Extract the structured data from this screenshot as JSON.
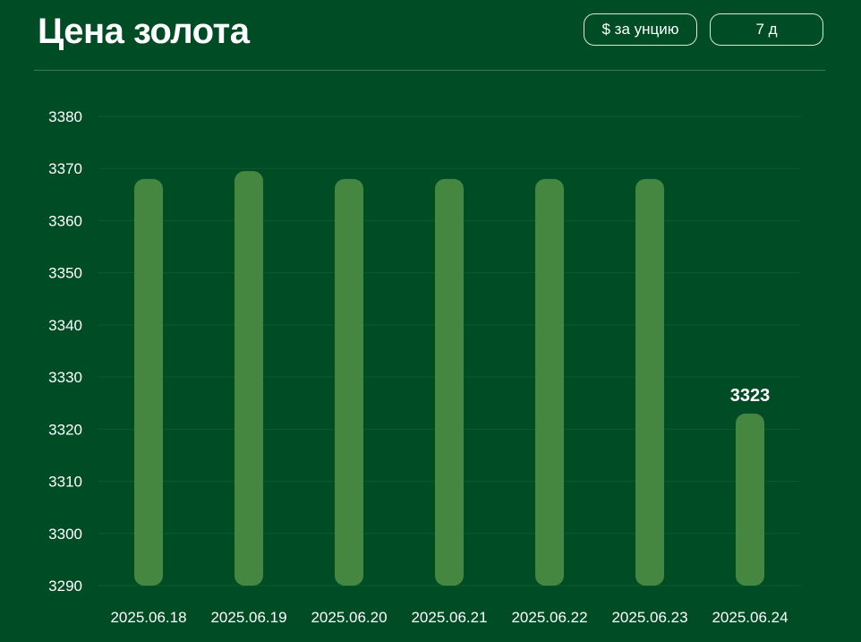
{
  "header": {
    "title": "Цена золота",
    "unit_button": "$ за унцию",
    "range_button": "7 д"
  },
  "colors": {
    "background": "#004d25",
    "bar": "#458741",
    "grid": "#0b5a2e",
    "text": "#ffffff"
  },
  "chart_data": {
    "type": "bar",
    "title": "",
    "xlabel": "",
    "ylabel": "",
    "categories": [
      "2025.06.18",
      "2025.06.19",
      "2025.06.20",
      "2025.06.21",
      "2025.06.22",
      "2025.06.23",
      "2025.06.24"
    ],
    "values": [
      3368,
      3369.5,
      3368,
      3368,
      3368,
      3368,
      3323
    ],
    "ylim": [
      3290,
      3380
    ],
    "yticks": [
      3290,
      3300,
      3310,
      3320,
      3330,
      3340,
      3350,
      3360,
      3370,
      3380
    ],
    "data_labels": [
      null,
      null,
      null,
      null,
      null,
      null,
      "3323"
    ],
    "grid": true,
    "legend": "none"
  }
}
